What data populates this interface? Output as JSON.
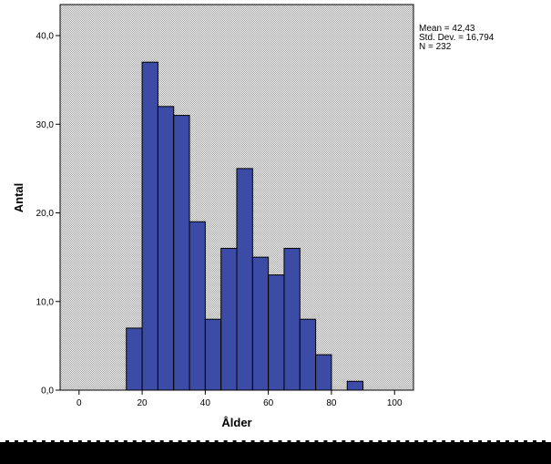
{
  "chart_data": {
    "type": "bar",
    "subtype": "histogram",
    "title": "",
    "xlabel": "Ålder",
    "ylabel": "Antal",
    "xlim": [
      -6,
      106
    ],
    "ylim": [
      0,
      43.5
    ],
    "x_ticks": [
      0,
      20,
      40,
      60,
      80,
      100
    ],
    "x_tick_labels": [
      "0",
      "20",
      "40",
      "60",
      "80",
      "100"
    ],
    "y_ticks": [
      0,
      10,
      20,
      30,
      40
    ],
    "y_tick_labels": [
      "0,0",
      "10,0",
      "20,0",
      "30,0",
      "40,0"
    ],
    "bin_width": 5,
    "bins": [
      {
        "start": 15,
        "end": 20,
        "count": 7
      },
      {
        "start": 20,
        "end": 25,
        "count": 37
      },
      {
        "start": 25,
        "end": 30,
        "count": 32
      },
      {
        "start": 30,
        "end": 35,
        "count": 31
      },
      {
        "start": 35,
        "end": 40,
        "count": 19
      },
      {
        "start": 40,
        "end": 45,
        "count": 8
      },
      {
        "start": 45,
        "end": 50,
        "count": 16
      },
      {
        "start": 50,
        "end": 55,
        "count": 25
      },
      {
        "start": 55,
        "end": 60,
        "count": 15
      },
      {
        "start": 60,
        "end": 65,
        "count": 13
      },
      {
        "start": 65,
        "end": 70,
        "count": 16
      },
      {
        "start": 70,
        "end": 75,
        "count": 8
      },
      {
        "start": 75,
        "end": 80,
        "count": 4
      },
      {
        "start": 85,
        "end": 90,
        "count": 1
      }
    ],
    "grid": false,
    "bar_color": "#3b4ba6",
    "plot_background": "#d9d9d9",
    "stats": {
      "mean": "Mean = 42,43",
      "std_dev": "Std. Dev. = 16,794",
      "n": "N = 232"
    }
  }
}
